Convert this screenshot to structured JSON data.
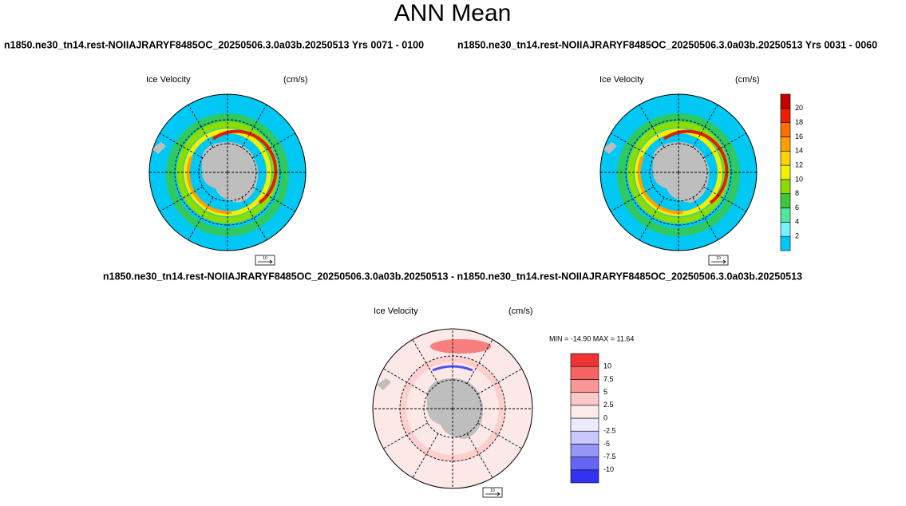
{
  "title": "ANN Mean",
  "panels": [
    {
      "caption": "n1850.ne30_tn14.rest-NOIIAJRARYF8485OC_20250506.3.0a03b.20250513  Yrs 0071 - 0100",
      "label": "Ice Velocity",
      "units": "(cm/s)",
      "vector_ref": "10"
    },
    {
      "caption": "n1850.ne30_tn14.rest-NOIIAJRARYF8485OC_20250506.3.0a03b.20250513  Yrs 0031 - 0060",
      "label": "Ice Velocity",
      "units": "(cm/s)",
      "vector_ref": "10"
    },
    {
      "caption": "n1850.ne30_tn14.rest-NOIIAJRARYF8485OC_20250506.3.0a03b.20250513 - n1850.ne30_tn14.rest-NOIIAJRARYF8485OC_20250506.3.0a03b.20250513",
      "label": "Ice Velocity",
      "units": "(cm/s)",
      "vector_ref": "10",
      "minmax": "MIN = -14.90 MAX =  11.64"
    }
  ],
  "colorbars": [
    {
      "labels": [
        2,
        4,
        6,
        8,
        10,
        12,
        14,
        16,
        18,
        20
      ],
      "colors": [
        "#00c8f5",
        "#7af0ff",
        "#50e6a0",
        "#3cc83c",
        "#8cdc00",
        "#f0f000",
        "#ffd200",
        "#ffa000",
        "#ff6e00",
        "#f01e00",
        "#c80000"
      ]
    },
    {
      "labels": [
        -10,
        -7.5,
        -5,
        -2.5,
        0,
        2.5,
        5,
        7.5,
        10
      ],
      "colors": [
        "#3232f0",
        "#6464f5",
        "#9696fa",
        "#c8c8fc",
        "#ebebfe",
        "#feebeb",
        "#fcc8c8",
        "#fa9696",
        "#f56464",
        "#f03232"
      ]
    }
  ]
}
